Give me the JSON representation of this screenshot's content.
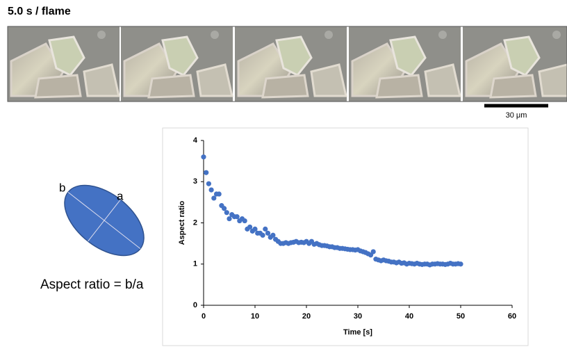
{
  "header": {
    "title": "5.0 s / flame"
  },
  "scale_bar": {
    "label": "30 μm"
  },
  "diagram": {
    "label_b": "b",
    "label_a": "a",
    "formula": "Aspect ratio = b/a"
  },
  "chart_data": {
    "type": "scatter",
    "xlabel": "Time [s]",
    "ylabel": "Aspect ratio",
    "color": "#4472c4",
    "xlim": [
      0,
      60
    ],
    "ylim": [
      0,
      4
    ],
    "xticks": [
      0,
      10,
      20,
      30,
      40,
      50,
      60
    ],
    "yticks": [
      0,
      1,
      2,
      3,
      4
    ],
    "x": [
      0,
      0.5,
      1,
      1.5,
      2,
      2.5,
      3,
      3.5,
      4,
      4.5,
      5,
      5.5,
      6,
      6.5,
      7,
      7.5,
      8,
      8.5,
      9,
      9.5,
      10,
      10.5,
      11,
      11.5,
      12,
      12.5,
      13,
      13.5,
      14,
      14.5,
      15,
      15.5,
      16,
      16.5,
      17,
      17.5,
      18,
      18.5,
      19,
      19.5,
      20,
      20.5,
      21,
      21.5,
      22,
      22.5,
      23,
      23.5,
      24,
      24.5,
      25,
      25.5,
      26,
      26.5,
      27,
      27.5,
      28,
      28.5,
      29,
      29.5,
      30,
      30.5,
      31,
      31.5,
      32,
      32.5,
      33,
      33.5,
      34,
      34.5,
      35,
      35.5,
      36,
      36.5,
      37,
      37.5,
      38,
      38.5,
      39,
      39.5,
      40,
      40.5,
      41,
      41.5,
      42,
      42.5,
      43,
      43.5,
      44,
      44.5,
      45,
      45.5,
      46,
      46.5,
      47,
      47.5,
      48,
      48.5,
      49,
      49.5,
      50
    ],
    "y": [
      3.6,
      3.22,
      2.95,
      2.8,
      2.6,
      2.7,
      2.7,
      2.42,
      2.35,
      2.25,
      2.1,
      2.2,
      2.15,
      2.15,
      2.05,
      2.1,
      2.05,
      1.85,
      1.9,
      1.8,
      1.85,
      1.75,
      1.75,
      1.7,
      1.85,
      1.75,
      1.65,
      1.7,
      1.6,
      1.55,
      1.5,
      1.5,
      1.52,
      1.5,
      1.52,
      1.53,
      1.55,
      1.52,
      1.53,
      1.52,
      1.55,
      1.5,
      1.55,
      1.48,
      1.5,
      1.47,
      1.45,
      1.45,
      1.44,
      1.42,
      1.42,
      1.4,
      1.4,
      1.38,
      1.38,
      1.37,
      1.36,
      1.35,
      1.35,
      1.34,
      1.35,
      1.32,
      1.3,
      1.28,
      1.25,
      1.22,
      1.3,
      1.12,
      1.1,
      1.08,
      1.1,
      1.08,
      1.07,
      1.05,
      1.05,
      1.03,
      1.05,
      1.02,
      1.03,
      1.0,
      1.02,
      1.01,
      1.0,
      1.02,
      1.0,
      0.99,
      1.0,
      1.0,
      0.98,
      1.0,
      1.0,
      1.01,
      1.0,
      1.0,
      0.99,
      1.0,
      1.02,
      1.0,
      1.0,
      1.01,
      1.0
    ]
  }
}
